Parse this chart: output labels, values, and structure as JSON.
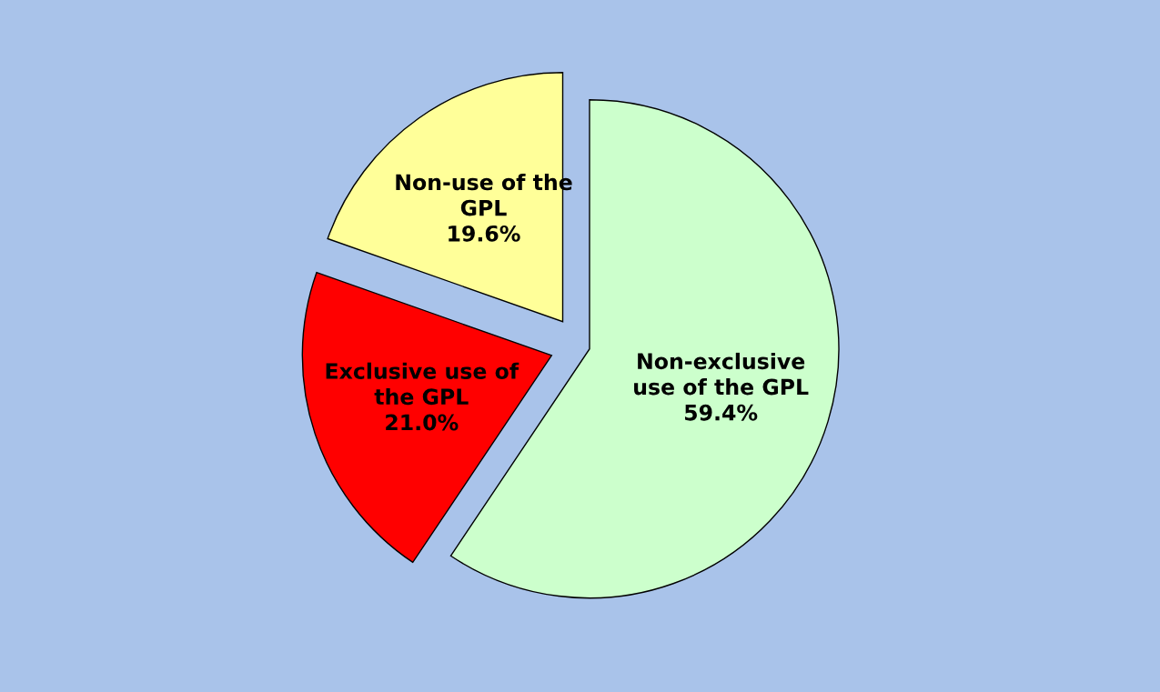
{
  "chart_data": {
    "type": "pie",
    "categories": [
      "Non-exclusive\nuse of the GPL",
      "Exclusive use of\nthe GPL",
      "Non-use of the\nGPL"
    ],
    "values": [
      59.4,
      21.0,
      19.6
    ],
    "value_labels": [
      "59.4%",
      "21.0%",
      "19.6%"
    ],
    "colors": [
      "#ccffcc",
      "#ff0000",
      "#ffff99"
    ],
    "legend": false
  }
}
